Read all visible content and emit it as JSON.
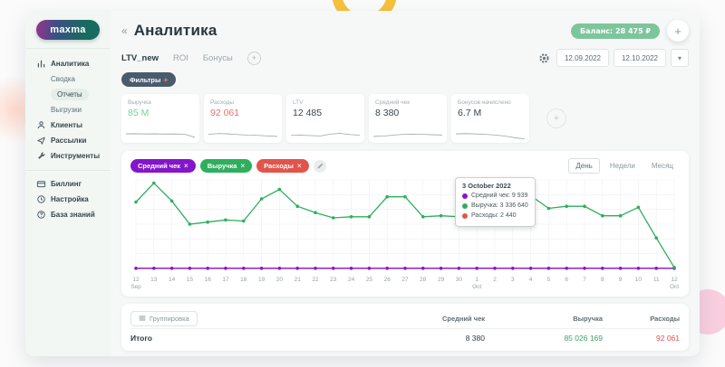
{
  "brand": {
    "logo": "maxma"
  },
  "sidebar": {
    "items": [
      {
        "label": "Аналитика",
        "icon": "analytics-icon"
      },
      {
        "label": "Сводка"
      },
      {
        "label": "Отчеты",
        "active": true
      },
      {
        "label": "Выгрузки"
      },
      {
        "label": "Клиенты",
        "icon": "clients-icon"
      },
      {
        "label": "Рассылки",
        "icon": "campaigns-icon"
      },
      {
        "label": "Инструменты",
        "icon": "tools-icon"
      },
      {
        "label": "Биллинг",
        "icon": "billing-icon"
      },
      {
        "label": "Настройка",
        "icon": "settings-icon"
      },
      {
        "label": "База знаний",
        "icon": "knowledge-icon"
      }
    ]
  },
  "header": {
    "collapse_icon": "«",
    "title": "Аналитика",
    "balance": "Баланс: 28 475 ₽",
    "add": "+"
  },
  "tabs": {
    "items": [
      "LTV_new",
      "ROI",
      "Бонусы"
    ],
    "active": "LTV_new",
    "add": "+"
  },
  "toolbar": {
    "date_from": "12.09.2022",
    "date_to": "12.10.2022",
    "dropdown": "▾"
  },
  "filters": {
    "label": "Фильтры",
    "plus": "+"
  },
  "metrics": [
    {
      "label": "Выручка",
      "value": "85 М",
      "tone": "green",
      "spark": [
        0.55,
        0.56,
        0.54,
        0.55,
        0.53,
        0.54,
        0.5,
        0.22
      ]
    },
    {
      "label": "Расходы",
      "value": "92 061",
      "tone": "red",
      "spark": [
        0.5,
        0.58,
        0.55,
        0.48,
        0.42,
        0.4,
        0.35,
        0.3
      ]
    },
    {
      "label": "LTV",
      "value": "12 485",
      "tone": "dark",
      "spark": [
        0.4,
        0.42,
        0.38,
        0.35,
        0.52,
        0.6,
        0.48,
        0.42
      ]
    },
    {
      "label": "Средний чек",
      "value": "8 380",
      "tone": "dark",
      "spark": [
        0.3,
        0.34,
        0.42,
        0.5,
        0.52,
        0.5,
        0.46,
        0.44
      ]
    },
    {
      "label": "Бонусов начислено",
      "value": "6.7 М",
      "tone": "dark",
      "spark": [
        0.55,
        0.57,
        0.54,
        0.5,
        0.44,
        0.34,
        0.18,
        0.05
      ]
    }
  ],
  "chart": {
    "legend": [
      {
        "label": "Средний чек",
        "close": "×"
      },
      {
        "label": "Выручка",
        "close": "×"
      },
      {
        "label": "Расходы",
        "close": "×"
      }
    ],
    "periods": [
      "День",
      "Недели",
      "Месяц"
    ],
    "active_period": "День",
    "tooltip": {
      "title": "3 October 2022",
      "rows": [
        {
          "text": "Средний чек: 9 939"
        },
        {
          "text": "Выручка: 3 336 640"
        },
        {
          "text": "Расходы: 2 440"
        }
      ]
    }
  },
  "chart_data": {
    "type": "line",
    "x_labels": [
      "12",
      "13",
      "14",
      "15",
      "16",
      "17",
      "18",
      "19",
      "20",
      "21",
      "22",
      "23",
      "24",
      "25",
      "26",
      "27",
      "28",
      "29",
      "30",
      "1",
      "2",
      "3",
      "4",
      "5",
      "6",
      "7",
      "8",
      "9",
      "10",
      "11",
      "12"
    ],
    "x_sublabels": {
      "0": "Sep",
      "19": "Oct",
      "30": "Oct"
    },
    "ylim": [
      0,
      4200000
    ],
    "grid": true,
    "legend_position": "top-left",
    "series": [
      {
        "name": "Средний чек",
        "color": "#8416c9",
        "values": [
          8120,
          8340,
          8510,
          8270,
          8450,
          8600,
          8380,
          8290,
          8150,
          8420,
          8560,
          8310,
          8240,
          8480,
          8390,
          8200,
          8350,
          8470,
          8290,
          8330,
          8410,
          9939,
          8520,
          8360,
          8280,
          8440,
          8190,
          8370,
          8460,
          8230,
          8310
        ]
      },
      {
        "name": "Выручка",
        "color": "#2fae5e",
        "values": [
          3150000,
          4050000,
          3200000,
          2100000,
          2200000,
          2300000,
          2250000,
          3300000,
          3750000,
          2950000,
          2650000,
          2400000,
          2450000,
          2450000,
          3400000,
          3400000,
          2450000,
          2500000,
          2450000,
          2950000,
          3300000,
          3336640,
          3450000,
          2850000,
          2950000,
          2950000,
          2500000,
          2500000,
          2900000,
          1450000,
          50000
        ]
      },
      {
        "name": "Расходы",
        "color": "#e2544a",
        "values": [
          2980,
          3050,
          2870,
          2940,
          3010,
          2890,
          2960,
          3020,
          2850,
          2930,
          3000,
          2910,
          2970,
          3040,
          2880,
          2950,
          3010,
          2900,
          2960,
          3030,
          2860,
          2440,
          2990,
          2920,
          2980,
          3050,
          2890,
          2940,
          3000,
          2910,
          2931
        ]
      }
    ]
  },
  "table": {
    "group_button": "Группировка",
    "columns": [
      "Средний чек",
      "Выручка",
      "Расходы"
    ],
    "total_row": {
      "label": "Итого",
      "values": [
        "8 380",
        "85 026 169",
        "92 061"
      ]
    }
  }
}
